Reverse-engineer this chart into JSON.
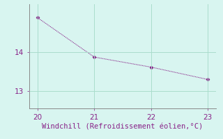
{
  "x": [
    20,
    21,
    22,
    23
  ],
  "y": [
    14.9,
    13.88,
    13.62,
    13.3
  ],
  "line_color": "#882288",
  "marker_style": "D",
  "marker_size": 2.5,
  "xlabel": "Windchill (Refroidissement éolien,°C)",
  "xlabel_color": "#882288",
  "background_color": "#d8f5f0",
  "grid_color": "#aaddcc",
  "axis_color": "#888888",
  "tick_color": "#882288",
  "xlim": [
    19.85,
    23.15
  ],
  "ylim": [
    12.55,
    15.25
  ],
  "yticks": [
    13,
    14
  ],
  "xticks": [
    20,
    21,
    22,
    23
  ],
  "xlabel_fontsize": 7.5,
  "tick_fontsize": 7.5
}
